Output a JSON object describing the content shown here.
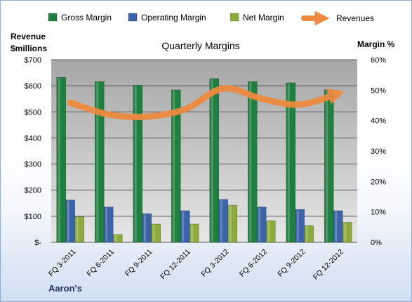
{
  "chart_data": {
    "type": "bar",
    "title": "Quarterly Margins",
    "left_axis_label": [
      "Revenue",
      "$millions"
    ],
    "right_axis_label": "Margin %",
    "footer": "Aaron's",
    "categories": [
      "FQ 3-2011",
      "FQ 6-2011",
      "FQ 9-2011",
      "FQ 12-2011",
      "FQ 3-2012",
      "FQ 6-2012",
      "FQ 9-2012",
      "FQ 12-2012"
    ],
    "left_ticks": [
      "$-",
      "$100",
      "$200",
      "$300",
      "$400",
      "$500",
      "$600",
      "$700"
    ],
    "right_ticks": [
      "0%",
      "10%",
      "20%",
      "30%",
      "40%",
      "50%",
      "60%"
    ],
    "ylim_left": [
      0,
      700
    ],
    "ylim_right": [
      0,
      60
    ],
    "series": [
      {
        "name": "Gross Margin",
        "kind": "bar",
        "axis": "right",
        "color": "#1e7f3e",
        "values": [
          54.2,
          52.8,
          51.6,
          50.1,
          53.8,
          52.8,
          52.4,
          50.1
        ]
      },
      {
        "name": "Operating Margin",
        "kind": "bar",
        "axis": "right",
        "color": "#3b64a8",
        "values": [
          13.9,
          11.6,
          9.4,
          10.4,
          14.1,
          11.6,
          10.8,
          10.4
        ]
      },
      {
        "name": "Net Margin",
        "kind": "bar",
        "axis": "right",
        "color": "#8bab3c",
        "values": [
          8.4,
          2.6,
          6.0,
          6.0,
          12.2,
          7.1,
          5.5,
          6.6
        ]
      },
      {
        "name": "Revenues",
        "kind": "line",
        "axis": "left",
        "color": "#ed8a3f",
        "values": [
          535,
          490,
          482,
          510,
          590,
          550,
          528,
          570
        ]
      }
    ],
    "grid": true,
    "legend": "top"
  }
}
